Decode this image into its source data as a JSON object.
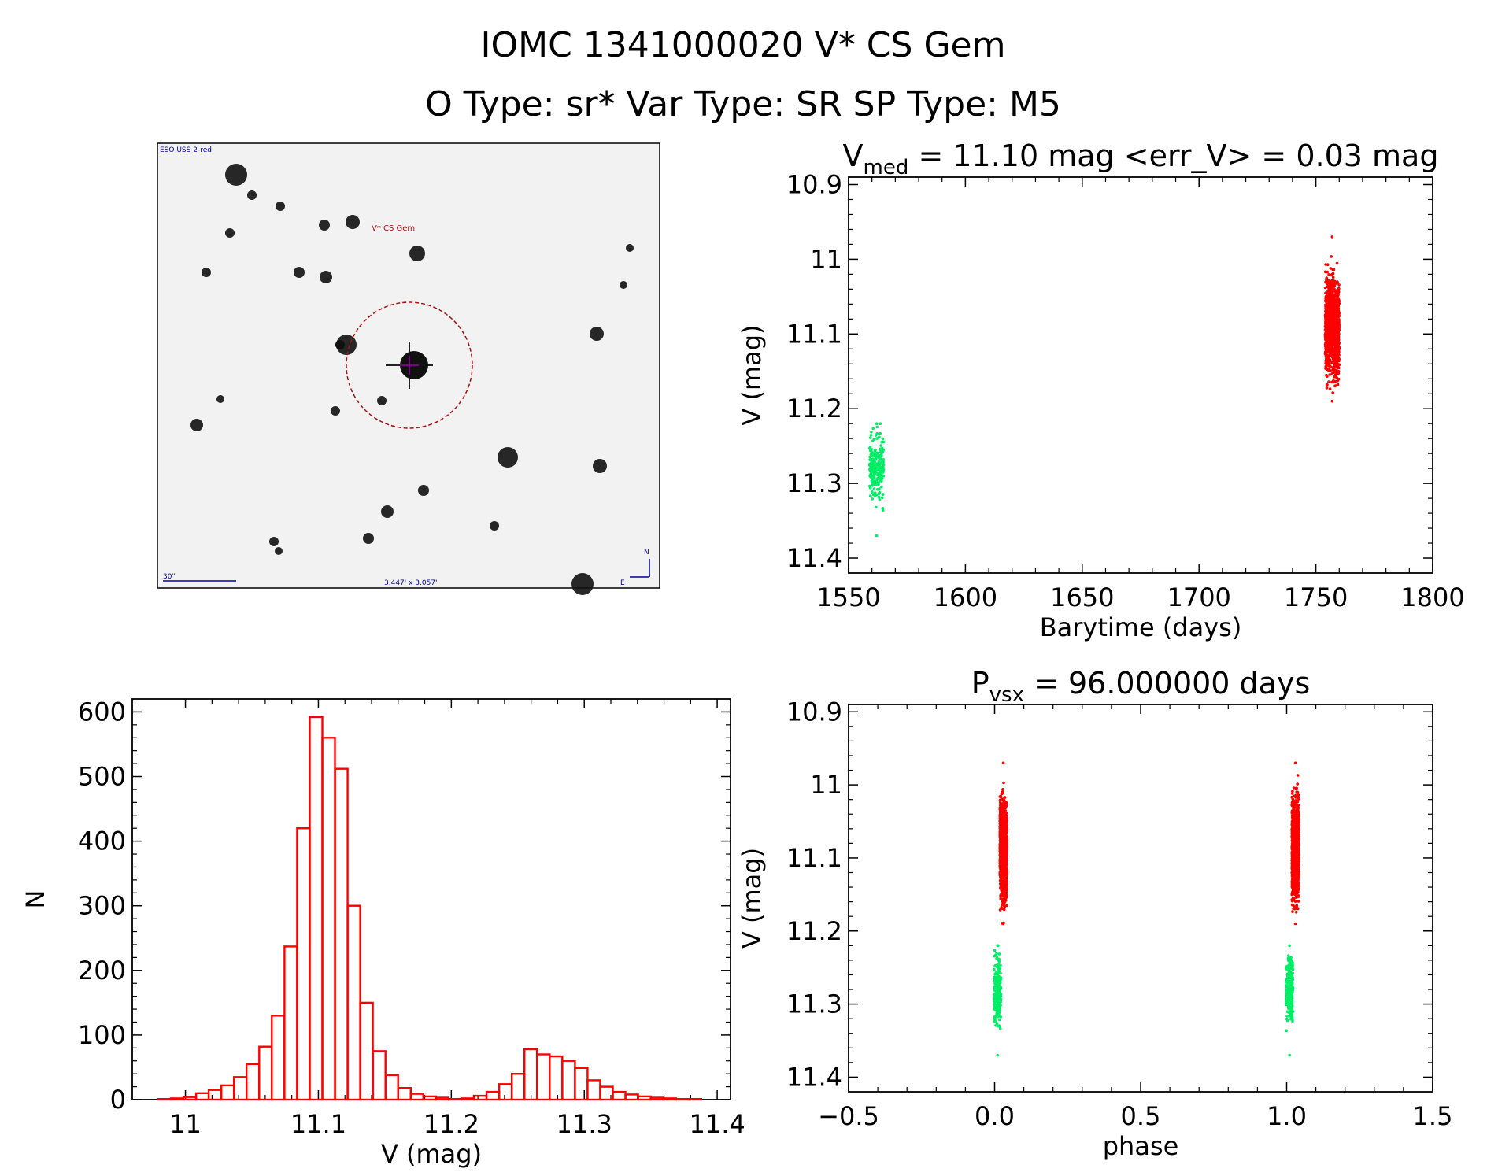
{
  "header": {
    "title": "IOMC 1341000020   V* CS Gem",
    "subtitle": "O Type: sr*  Var Type: SR  SP Type: M5"
  },
  "finder": {
    "survey_label": "ESO USS 2-red",
    "target_label": "V* CS Gem",
    "scale_label": "30\"",
    "fov_label": "3.447' x 3.057'",
    "north_label": "N",
    "east_label": "E"
  },
  "colors": {
    "axes": "#000000",
    "histogram": "#ff0000",
    "series_red": "#ff0000",
    "series_green": "#00ee66",
    "finder_circle": "#aa1111",
    "finder_text": "#000099"
  },
  "chart_data": [
    {
      "type": "scatter",
      "id": "light_curve",
      "title": "V_med = 11.10 mag <err_V> = 0.03 mag",
      "title_parts": {
        "prefix": "V",
        "subscript": "med",
        "rest": " = 11.10 mag <err_V> = 0.03 mag"
      },
      "xlabel": "Barytime (days)",
      "ylabel": "V (mag)",
      "xlim": [
        1550,
        1800
      ],
      "ylim": [
        11.42,
        10.89
      ],
      "y_inverted": true,
      "xticks": [
        1550,
        1600,
        1650,
        1700,
        1750,
        1800
      ],
      "yticks": [
        10.9,
        11.0,
        11.1,
        11.2,
        11.3,
        11.4
      ],
      "series": [
        {
          "color": "green",
          "x_center": 1562,
          "x_spread": 3,
          "y_center": 11.28,
          "y_min": 11.22,
          "y_max": 11.37,
          "n": 240
        },
        {
          "color": "red",
          "x_center": 1757,
          "x_spread": 3,
          "y_center": 11.09,
          "y_min": 10.97,
          "y_max": 11.19,
          "n": 1200
        }
      ]
    },
    {
      "type": "bar",
      "id": "histogram",
      "title": "",
      "xlabel": "V (mag)",
      "ylabel": "N",
      "xlim": [
        10.96,
        11.41
      ],
      "ylim": [
        0,
        620
      ],
      "xticks": [
        11.0,
        11.1,
        11.2,
        11.3,
        11.4
      ],
      "yticks": [
        0,
        100,
        200,
        300,
        400,
        500,
        600
      ],
      "bin_width": 0.0095,
      "bin_starts": [
        10.97,
        10.9795,
        10.989,
        10.9985,
        11.008,
        11.0175,
        11.027,
        11.0365,
        11.046,
        11.0555,
        11.065,
        11.0745,
        11.084,
        11.0935,
        11.103,
        11.1125,
        11.122,
        11.1315,
        11.141,
        11.1505,
        11.16,
        11.1695,
        11.179,
        11.1885,
        11.198,
        11.2075,
        11.217,
        11.2265,
        11.236,
        11.2455,
        11.255,
        11.2645,
        11.274,
        11.2835,
        11.293,
        11.3025,
        11.312,
        11.3215,
        11.331,
        11.3405,
        11.35,
        11.3595,
        11.369,
        11.3785
      ],
      "values": [
        0,
        1,
        2,
        4,
        10,
        15,
        22,
        35,
        55,
        82,
        130,
        237,
        420,
        592,
        560,
        512,
        300,
        150,
        75,
        38,
        18,
        9,
        5,
        3,
        1,
        2,
        6,
        12,
        24,
        40,
        78,
        70,
        67,
        60,
        49,
        30,
        20,
        12,
        8,
        5,
        3,
        2,
        1,
        1
      ]
    },
    {
      "type": "scatter",
      "id": "phase_curve",
      "title": "P_vsx = 96.000000 days",
      "title_parts": {
        "prefix": "P",
        "subscript": "vsx",
        "rest": " = 96.000000 days"
      },
      "xlabel": "phase",
      "ylabel": "V (mag)",
      "xlim": [
        -0.5,
        1.5
      ],
      "ylim": [
        11.42,
        10.89
      ],
      "y_inverted": true,
      "xticks": [
        -0.5,
        0.0,
        0.5,
        1.0,
        1.5
      ],
      "xticklabels": [
        "−0.5",
        "0.0",
        "0.5",
        "1.0",
        "1.5"
      ],
      "yticks": [
        10.9,
        11.0,
        11.1,
        11.2,
        11.3,
        11.4
      ],
      "series": [
        {
          "color": "green",
          "x_center": 0.01,
          "x_spread": 0.012,
          "y_center": 11.28,
          "y_min": 11.22,
          "y_max": 11.37,
          "n": 240
        },
        {
          "color": "red",
          "x_center": 0.03,
          "x_spread": 0.012,
          "y_center": 11.09,
          "y_min": 10.97,
          "y_max": 11.19,
          "n": 1200
        },
        {
          "color": "green",
          "x_center": 1.01,
          "x_spread": 0.012,
          "y_center": 11.28,
          "y_min": 11.22,
          "y_max": 11.37,
          "n": 240
        },
        {
          "color": "red",
          "x_center": 1.03,
          "x_spread": 0.012,
          "y_center": 11.09,
          "y_min": 10.97,
          "y_max": 11.19,
          "n": 1200
        }
      ]
    }
  ]
}
